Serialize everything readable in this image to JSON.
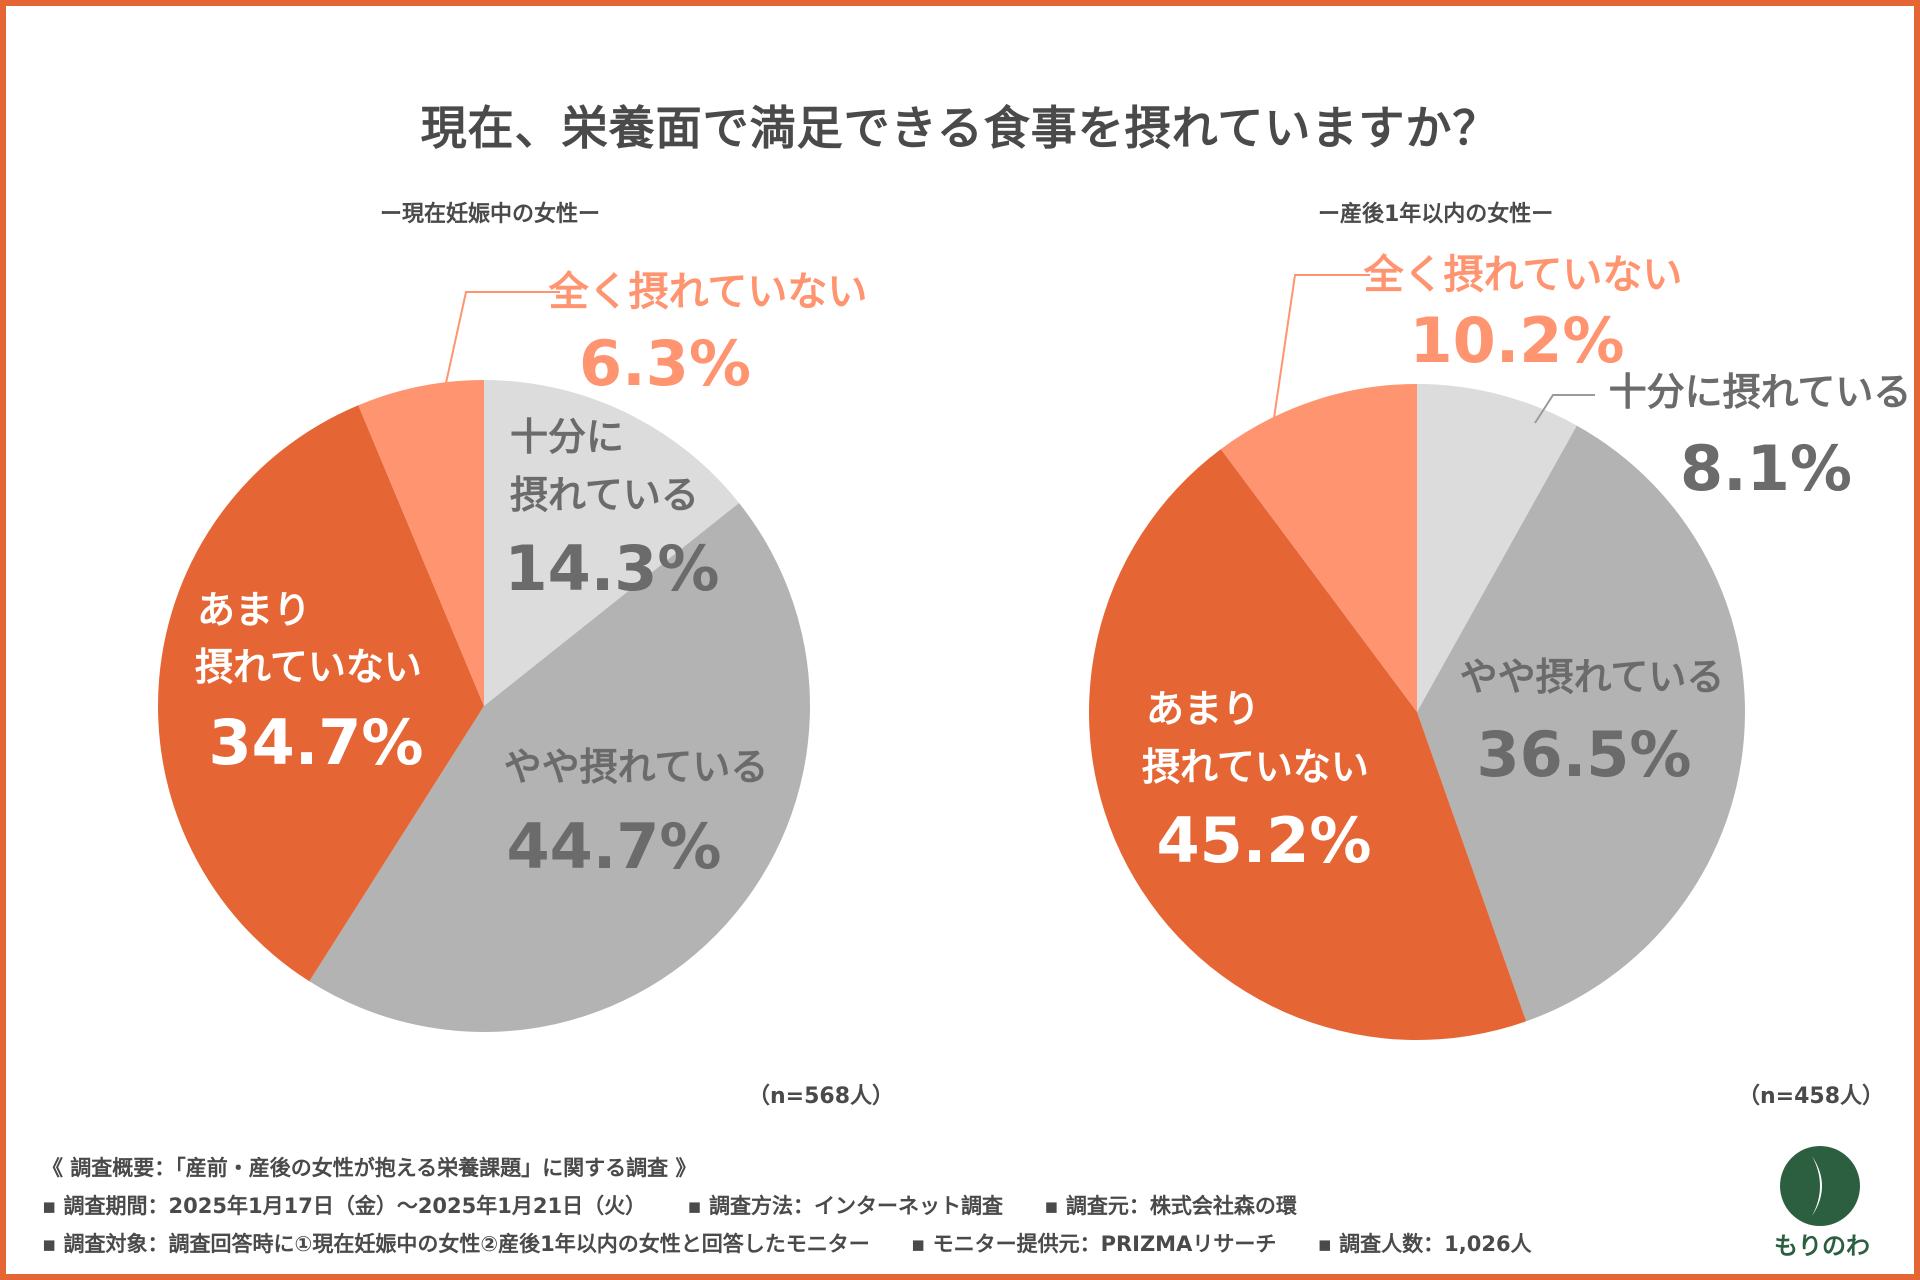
{
  "title": "現在、栄養面で満足できる食事を摂れていますか？",
  "colors": {
    "border": "#E56634",
    "sufficient": "#DCDCDC",
    "somewhat": "#B3B3B3",
    "not_much": "#E56634",
    "not_at_all": "#FF9470",
    "label_gray": "#6B6B6B",
    "label_orange": "#FF9470",
    "white": "#FFFFFF"
  },
  "chart_data": [
    {
      "type": "pie",
      "title": "ー現在妊娠中の女性ー",
      "n_label": "（n=568人）",
      "categories": [
        "十分に摂れている",
        "やや摂れている",
        "あまり摂れていない",
        "全く摂れていない"
      ],
      "values": [
        14.3,
        44.7,
        34.7,
        6.3
      ],
      "value_labels": [
        "14.3%",
        "44.7%",
        "34.7%",
        "6.3%"
      ]
    },
    {
      "type": "pie",
      "title": "ー産後1年以内の女性ー",
      "n_label": "（n=458人）",
      "categories": [
        "十分に摂れている",
        "やや摂れている",
        "あまり摂れていない",
        "全く摂れていない"
      ],
      "values": [
        8.1,
        36.5,
        45.2,
        10.2
      ],
      "value_labels": [
        "8.1%",
        "36.5%",
        "45.2%",
        "10.2%"
      ]
    }
  ],
  "left_labels": {
    "sufficient_1": "十分に",
    "sufficient_2": "摂れている",
    "not_much_1": "あまり",
    "not_much_2": "摂れていない"
  },
  "right_labels": {
    "not_much_1": "あまり",
    "not_much_2": "摂れていない"
  },
  "footer": {
    "summary": "《 調査概要：「産前・産後の女性が抱える栄養課題」に関する調査 》",
    "period": "▪ 調査期間：2025年1月17日（金）〜2025年1月21日（火）",
    "method": "▪ 調査方法：インターネット調査",
    "source": "▪ 調査元：株式会社森の環",
    "target": "▪ 調査対象：調査回答時に①現在妊娠中の女性②産後1年以内の女性と回答したモニター",
    "provider": "▪ モニター提供元：PRIZMAリサーチ",
    "count": "▪ 調査人数：1,026人"
  },
  "logo": {
    "text": "もりのわ"
  }
}
